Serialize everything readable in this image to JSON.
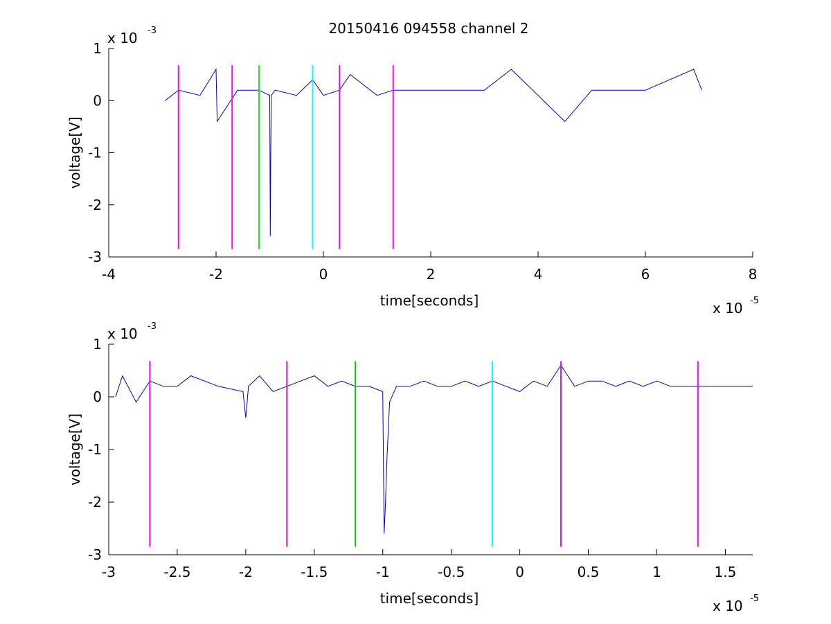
{
  "figure": {
    "title": "20150416 094558 channel 2"
  },
  "chart_data": [
    {
      "type": "line",
      "title": "20150416 094558 channel 2",
      "xlabel": "time[seconds]",
      "ylabel": "voltage[V]",
      "x_exponent_label": "x 10",
      "x_exponent": "-5",
      "y_exponent_label": "x 10",
      "y_exponent": "-3",
      "xlim": [
        -4e-05,
        8e-05
      ],
      "ylim": [
        -0.003,
        0.001
      ],
      "x_ticks": [
        -4e-05,
        -2e-05,
        0,
        2e-05,
        4e-05,
        6e-05,
        8e-05
      ],
      "x_tick_labels": [
        "-4",
        "-2",
        "0",
        "2",
        "4",
        "6",
        "8"
      ],
      "y_ticks": [
        -0.003,
        -0.002,
        -0.001,
        0,
        0.001
      ],
      "y_tick_labels": [
        "-3",
        "-2",
        "-1",
        "0",
        "1"
      ],
      "grid": false,
      "series": [
        {
          "color": "#0000cc",
          "x": [
            -2.95e-05,
            -2.7e-05,
            -2.3e-05,
            -2e-05,
            -1.98e-05,
            -1.6e-05,
            -1.2e-05,
            -1e-05,
            -9.9e-06,
            -9.8e-06,
            -9.7e-06,
            -9e-06,
            -5e-06,
            -2e-06,
            0,
            3e-06,
            5e-06,
            1e-05,
            1.3e-05,
            2e-05,
            3e-05,
            3.5e-05,
            4.5e-05,
            5e-05,
            6e-05,
            6.9e-05,
            7.05e-05
          ],
          "y": [
            0,
            0.0002,
            0.0001,
            0.0006,
            -0.0004,
            0.0002,
            0.0002,
            0.0001,
            -0.0026,
            -0.0011,
            0.0001,
            0.0002,
            0.0001,
            0.0004,
            0.0001,
            0.0002,
            0.0005,
            0.0001,
            0.0002,
            0.0002,
            0.0002,
            0.0006,
            -0.0004,
            0.0002,
            0.0002,
            0.0006,
            0.0002
          ]
        }
      ],
      "vlines": [
        {
          "x": -2.7e-05,
          "color": "#ff00ff"
        },
        {
          "x": -1.7e-05,
          "color": "#ff00ff"
        },
        {
          "x": -1.2e-05,
          "color": "#00ff00"
        },
        {
          "x": -2e-06,
          "color": "#00ffff"
        },
        {
          "x": 3e-06,
          "color": "#ff00ff"
        },
        {
          "x": 1.3e-05,
          "color": "#ff00ff"
        }
      ],
      "vline_range": [
        -0.00285,
        0.00068
      ]
    },
    {
      "type": "line",
      "title": "",
      "xlabel": "time[seconds]",
      "ylabel": "voltage[V]",
      "x_exponent_label": "x 10",
      "x_exponent": "-5",
      "y_exponent_label": "x 10",
      "y_exponent": "-3",
      "xlim": [
        -3e-05,
        1.7e-05
      ],
      "ylim": [
        -0.003,
        0.001
      ],
      "x_ticks": [
        -3e-05,
        -2.5e-05,
        -2e-05,
        -1.5e-05,
        -1e-05,
        -5e-06,
        0,
        5e-06,
        1e-05,
        1.5e-05
      ],
      "x_tick_labels": [
        "-3",
        "-2.5",
        "-2",
        "-1.5",
        "-1",
        "-0.5",
        "0",
        "0.5",
        "1",
        "1.5"
      ],
      "y_ticks": [
        -0.003,
        -0.002,
        -0.001,
        0,
        0.001
      ],
      "y_tick_labels": [
        "-3",
        "-2",
        "-1",
        "0",
        "1"
      ],
      "grid": false,
      "series": [
        {
          "color": "#0000cc",
          "x": [
            -2.95e-05,
            -2.9e-05,
            -2.8e-05,
            -2.7e-05,
            -2.6e-05,
            -2.5e-05,
            -2.4e-05,
            -2.2e-05,
            -2.02e-05,
            -2e-05,
            -1.98e-05,
            -1.9e-05,
            -1.8e-05,
            -1.7e-05,
            -1.6e-05,
            -1.5e-05,
            -1.4e-05,
            -1.3e-05,
            -1.2e-05,
            -1.1e-05,
            -1e-05,
            -9.9e-06,
            -9.8e-06,
            -9.7e-06,
            -9.5e-06,
            -9e-06,
            -8e-06,
            -7e-06,
            -6e-06,
            -5e-06,
            -4e-06,
            -3e-06,
            -2e-06,
            -1e-06,
            0,
            1e-06,
            2e-06,
            3e-06,
            4e-06,
            5e-06,
            6e-06,
            7e-06,
            8e-06,
            9e-06,
            1e-05,
            1.1e-05,
            1.2e-05,
            1.3e-05,
            1.4e-05,
            1.5e-05,
            1.6e-05,
            1.7e-05
          ],
          "y": [
            0,
            0.0004,
            -0.0001,
            0.0003,
            0.0002,
            0.0002,
            0.0004,
            0.0002,
            0.0001,
            -0.0004,
            0.0002,
            0.0004,
            0.0001,
            0.0002,
            0.0003,
            0.0004,
            0.0002,
            0.0003,
            0.0002,
            0.0002,
            0.0001,
            -0.0026,
            -0.002,
            -0.0012,
            -0.0001,
            0.0002,
            0.0002,
            0.0003,
            0.0002,
            0.0002,
            0.0003,
            0.0002,
            0.0003,
            0.0002,
            0.0001,
            0.0003,
            0.0002,
            0.0006,
            0.0002,
            0.0003,
            0.0003,
            0.0002,
            0.0003,
            0.0002,
            0.0003,
            0.0002,
            0.0002,
            0.0002,
            0.0002,
            0.0002,
            0.0002,
            0.0002
          ]
        }
      ],
      "vlines": [
        {
          "x": -2.7e-05,
          "color": "#ff00ff"
        },
        {
          "x": -1.7e-05,
          "color": "#ff00ff"
        },
        {
          "x": -1.2e-05,
          "color": "#00cc00"
        },
        {
          "x": -2e-06,
          "color": "#00ffff"
        },
        {
          "x": 3e-06,
          "color": "#ff00ff"
        },
        {
          "x": 1.3e-05,
          "color": "#ff00ff"
        }
      ],
      "vline_range": [
        -0.00285,
        0.00068
      ]
    }
  ]
}
